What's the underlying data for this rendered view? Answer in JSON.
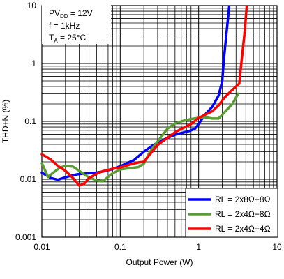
{
  "chart_data": {
    "type": "line",
    "xlabel": "Output Power (W)",
    "ylabel": "THD+N (%)",
    "x_scale": "log",
    "y_scale": "log",
    "xlim": [
      0.01,
      10
    ],
    "ylim": [
      0.001,
      10
    ],
    "x_ticks": [
      "0.01",
      "0.1",
      "1",
      "10"
    ],
    "y_ticks": [
      "10",
      "1",
      "0.1",
      "0.01",
      "0.001"
    ],
    "grid": true,
    "legend_position": "bottom-right",
    "conditions": {
      "pvdd_main": "PV",
      "pvdd_sub": "DD",
      "pvdd_value": " = 12V",
      "freq": "f = 1kHz",
      "temp_main": "T",
      "temp_sub": "A",
      "temp_value": " = 25°C"
    },
    "series": [
      {
        "name": "RL = 2x8Ω+8Ω",
        "color": "#0000ff",
        "points": [
          [
            0.01,
            0.013
          ],
          [
            0.013,
            0.0105
          ],
          [
            0.016,
            0.0098
          ],
          [
            0.02,
            0.0108
          ],
          [
            0.025,
            0.0118
          ],
          [
            0.03,
            0.0123
          ],
          [
            0.04,
            0.0127
          ],
          [
            0.05,
            0.013
          ],
          [
            0.06,
            0.0136
          ],
          [
            0.08,
            0.015
          ],
          [
            0.1,
            0.0168
          ],
          [
            0.15,
            0.0215
          ],
          [
            0.2,
            0.03
          ],
          [
            0.25,
            0.037
          ],
          [
            0.3,
            0.043
          ],
          [
            0.4,
            0.052
          ],
          [
            0.5,
            0.059
          ],
          [
            0.6,
            0.063
          ],
          [
            0.7,
            0.066
          ],
          [
            0.8,
            0.07
          ],
          [
            0.9,
            0.075
          ],
          [
            1.0,
            0.09
          ],
          [
            1.2,
            0.13
          ],
          [
            1.5,
            0.18
          ],
          [
            1.8,
            0.28
          ],
          [
            2.0,
            0.5
          ],
          [
            2.1,
            1.2
          ],
          [
            2.25,
            3.0
          ],
          [
            2.45,
            9.5
          ]
        ]
      },
      {
        "name": "RL = 2x4Ω+8Ω",
        "color": "#5a9e32",
        "points": [
          [
            0.01,
            0.019
          ],
          [
            0.012,
            0.011
          ],
          [
            0.014,
            0.013
          ],
          [
            0.017,
            0.016
          ],
          [
            0.02,
            0.017
          ],
          [
            0.025,
            0.0165
          ],
          [
            0.03,
            0.014
          ],
          [
            0.035,
            0.012
          ],
          [
            0.04,
            0.0108
          ],
          [
            0.05,
            0.0095
          ],
          [
            0.06,
            0.0092
          ],
          [
            0.07,
            0.011
          ],
          [
            0.08,
            0.0127
          ],
          [
            0.1,
            0.0148
          ],
          [
            0.13,
            0.0155
          ],
          [
            0.17,
            0.0162
          ],
          [
            0.2,
            0.0185
          ],
          [
            0.23,
            0.027
          ],
          [
            0.26,
            0.035
          ],
          [
            0.3,
            0.045
          ],
          [
            0.4,
            0.075
          ],
          [
            0.5,
            0.092
          ],
          [
            0.6,
            0.1
          ],
          [
            0.8,
            0.11
          ],
          [
            1.0,
            0.115
          ],
          [
            1.2,
            0.118
          ],
          [
            1.5,
            0.112
          ],
          [
            1.8,
            0.112
          ],
          [
            2.0,
            0.13
          ],
          [
            2.3,
            0.16
          ],
          [
            2.7,
            0.2
          ],
          [
            3.0,
            0.26
          ],
          [
            3.2,
            0.3
          ]
        ]
      },
      {
        "name": "RL = 2x4Ω+4Ω",
        "color": "#ff0000",
        "points": [
          [
            0.01,
            0.027
          ],
          [
            0.013,
            0.022
          ],
          [
            0.016,
            0.017
          ],
          [
            0.02,
            0.014
          ],
          [
            0.025,
            0.0105
          ],
          [
            0.03,
            0.0078
          ],
          [
            0.035,
            0.0085
          ],
          [
            0.04,
            0.0105
          ],
          [
            0.05,
            0.0124
          ],
          [
            0.06,
            0.0138
          ],
          [
            0.08,
            0.0152
          ],
          [
            0.1,
            0.016
          ],
          [
            0.13,
            0.0178
          ],
          [
            0.17,
            0.0195
          ],
          [
            0.2,
            0.02
          ],
          [
            0.25,
            0.029
          ],
          [
            0.3,
            0.039
          ],
          [
            0.4,
            0.052
          ],
          [
            0.5,
            0.065
          ],
          [
            0.6,
            0.074
          ],
          [
            0.8,
            0.09
          ],
          [
            1.0,
            0.115
          ],
          [
            1.2,
            0.13
          ],
          [
            1.5,
            0.15
          ],
          [
            1.8,
            0.19
          ],
          [
            2.1,
            0.25
          ],
          [
            2.5,
            0.32
          ],
          [
            3.0,
            0.4
          ],
          [
            3.3,
            0.45
          ],
          [
            3.5,
            1.0
          ],
          [
            3.7,
            2.0
          ],
          [
            3.9,
            4.0
          ],
          [
            4.1,
            9.5
          ]
        ]
      }
    ]
  }
}
